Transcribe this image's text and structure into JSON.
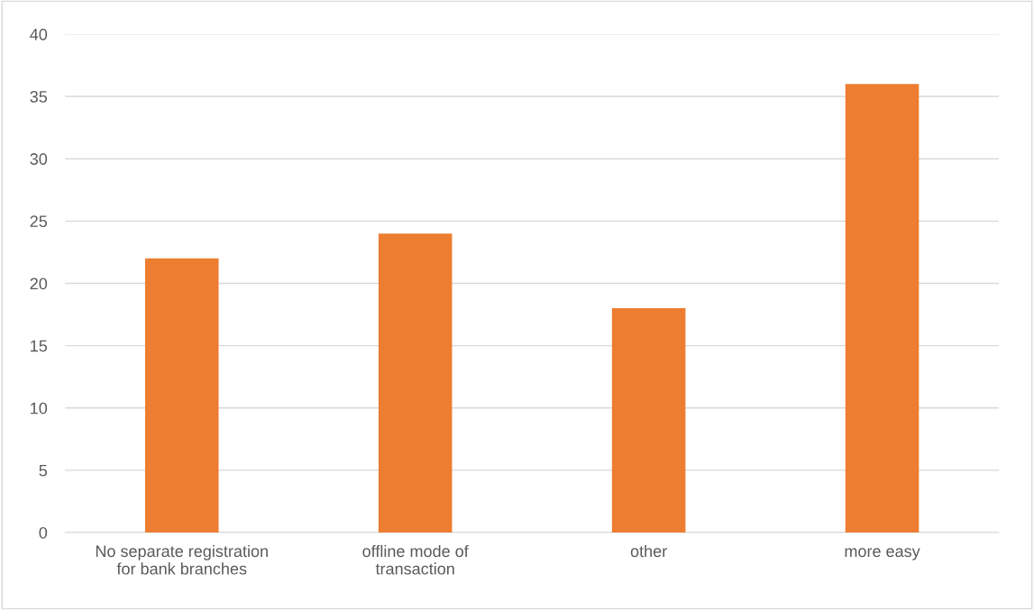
{
  "chart_data": {
    "type": "bar",
    "categories": [
      "No separate registration\nfor bank branches",
      "offline mode of\ntransaction",
      "other",
      "more easy"
    ],
    "values": [
      22,
      24,
      18,
      36
    ],
    "color": "#ed7d31",
    "ylim": [
      0,
      40
    ],
    "yticks": [
      0,
      5,
      10,
      15,
      20,
      25,
      30,
      35,
      40
    ],
    "grid": "y"
  }
}
